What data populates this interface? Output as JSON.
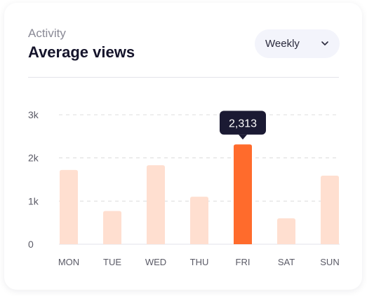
{
  "header": {
    "subtitle": "Activity",
    "title": "Average views"
  },
  "period_select": {
    "selected": "Weekly",
    "icon": "chevron-down-icon"
  },
  "colors": {
    "bar": "#ffdfd0",
    "bar_highlight": "#ff6b2c",
    "tooltip_bg": "#1b1a33",
    "tooltip_text": "#ffffff",
    "grid": "#dcdcdc",
    "axis_text": "#5a5a66"
  },
  "chart_data": {
    "type": "bar",
    "categories": [
      "MON",
      "TUE",
      "WED",
      "THU",
      "FRI",
      "SAT",
      "SUN"
    ],
    "values": [
      1720,
      770,
      1830,
      1100,
      2313,
      600,
      1590
    ],
    "yticks": [
      "0",
      "1k",
      "2k",
      "3k"
    ],
    "ytick_values": [
      0,
      1000,
      2000,
      3000
    ],
    "ylim": [
      0,
      3000
    ],
    "grid": true,
    "highlight_index": 4,
    "tooltip": "2,313"
  }
}
